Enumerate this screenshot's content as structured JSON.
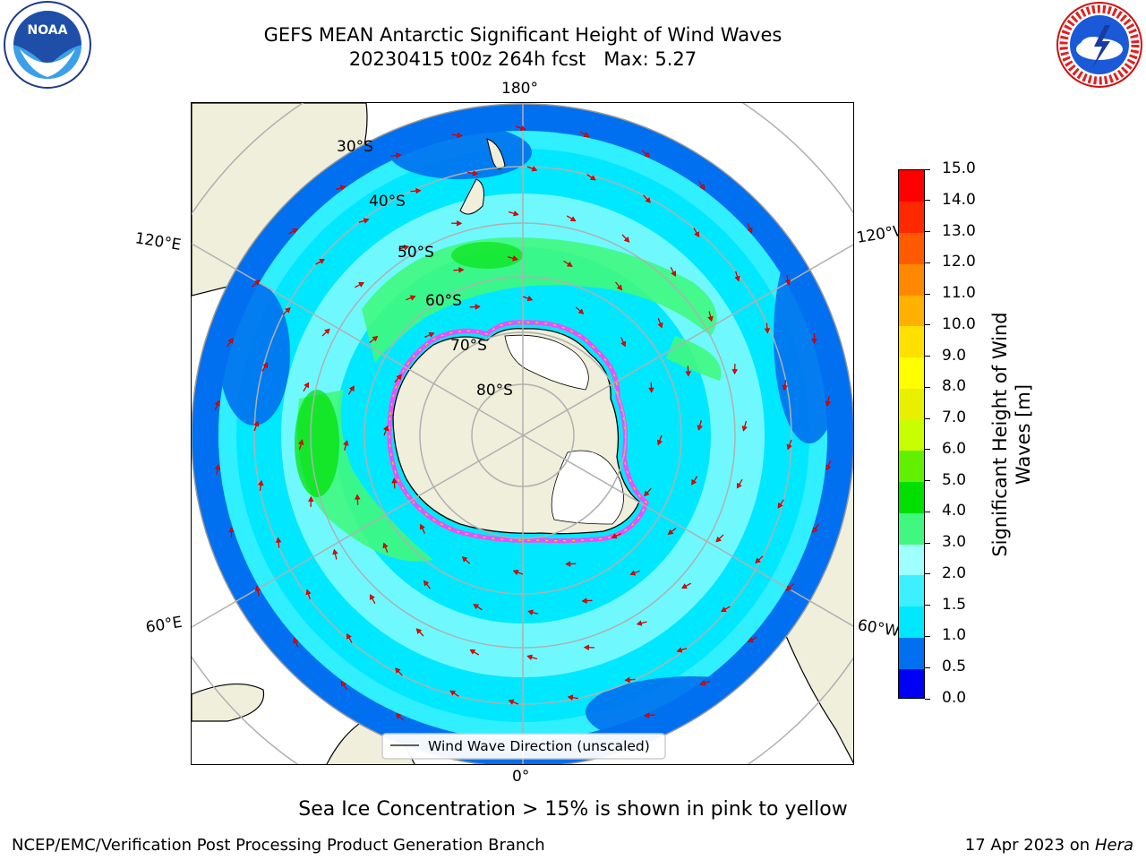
{
  "header": {
    "title_line1": "GEFS MEAN Antarctic Significant Height of Wind Waves",
    "title_line2": "20230415 t00z 264h fcst   Max: 5.27"
  },
  "logos": {
    "noaa": "NOAA",
    "nws": "NATIONAL WEATHER SERVICE"
  },
  "map": {
    "longitude_labels": {
      "top": "180°",
      "bottom": "0°",
      "upper_left": "120°E",
      "upper_right": "120°W",
      "lower_left": "60°E",
      "lower_right": "60°W"
    },
    "latitude_labels": [
      "30°S",
      "40°S",
      "50°S",
      "60°S",
      "70°S",
      "80°S"
    ],
    "legend_label": "Wind Wave Direction (unscaled)"
  },
  "colorbar": {
    "title": "Significant Height of Wind Waves [m]",
    "ticks": [
      "0.0",
      "0.5",
      "1.0",
      "1.5",
      "2.0",
      "3.0",
      "4.0",
      "5.0",
      "6.0",
      "7.0",
      "8.0",
      "9.0",
      "10.0",
      "11.0",
      "12.0",
      "13.0",
      "14.0",
      "15.0"
    ],
    "colors": [
      "#0000f5",
      "#0070f0",
      "#00e8ff",
      "#3cf0ff",
      "#a0ffff",
      "#40f880",
      "#00e000",
      "#60f000",
      "#c8ff00",
      "#e8f000",
      "#ffff00",
      "#ffe000",
      "#ffb000",
      "#ff8800",
      "#ff5a00",
      "#ff2800",
      "#ff0000"
    ]
  },
  "notes": {
    "ice": "Sea Ice Concentration > 15% is shown in pink to yellow",
    "footer_left": "NCEP/EMC/Verification Post Processing Product Generation Branch",
    "footer_date": "17 Apr 2023 on ",
    "footer_machine": "Hera"
  }
}
